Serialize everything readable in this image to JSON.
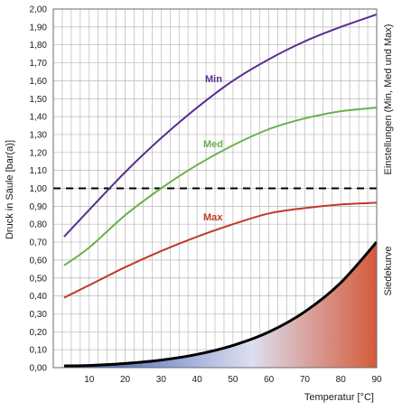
{
  "chart_data": {
    "type": "line",
    "title": "",
    "xlabel": "Temperatur [°C]",
    "ylabel": "Druck in Säule [bar(a)]",
    "right_label_top": "Einstellungen (Min, Med und Max)",
    "right_label_bottom": "Siedekurve",
    "xlim": [
      0,
      90
    ],
    "ylim": [
      0,
      2
    ],
    "x_ticks": [
      "10",
      "20",
      "30",
      "40",
      "50",
      "60",
      "70",
      "80",
      "90"
    ],
    "y_ticks": [
      "0,00",
      "0,10",
      "0,20",
      "0,30",
      "0,40",
      "0,50",
      "0,60",
      "0,70",
      "0,80",
      "0,90",
      "1,00",
      "1,10",
      "1,20",
      "1,30",
      "1,40",
      "1,50",
      "1,60",
      "1,70",
      "1,80",
      "1,90",
      "2,00"
    ],
    "grid": true,
    "reference_line": {
      "y": 1.0,
      "style": "dashed"
    },
    "series": [
      {
        "name": "Min",
        "color": "#5b2d91",
        "x": [
          3,
          10,
          20,
          30,
          40,
          50,
          60,
          70,
          80,
          90
        ],
        "y": [
          0.73,
          0.88,
          1.09,
          1.28,
          1.45,
          1.6,
          1.72,
          1.82,
          1.9,
          1.97
        ]
      },
      {
        "name": "Med",
        "color": "#6ab04c",
        "x": [
          3,
          10,
          20,
          30,
          40,
          50,
          60,
          70,
          80,
          90
        ],
        "y": [
          0.57,
          0.67,
          0.85,
          1.0,
          1.13,
          1.24,
          1.33,
          1.39,
          1.43,
          1.45
        ]
      },
      {
        "name": "Max",
        "color": "#c0392b",
        "x": [
          3,
          10,
          20,
          30,
          40,
          50,
          60,
          70,
          80,
          90
        ],
        "y": [
          0.39,
          0.46,
          0.56,
          0.65,
          0.73,
          0.8,
          0.86,
          0.89,
          0.91,
          0.92
        ]
      },
      {
        "name": "Siedekurve",
        "color": "#000000",
        "x": [
          3,
          10,
          20,
          30,
          40,
          50,
          60,
          70,
          80,
          90
        ],
        "y": [
          0.01,
          0.012,
          0.023,
          0.042,
          0.074,
          0.124,
          0.199,
          0.312,
          0.474,
          0.701
        ]
      }
    ],
    "fill_gradient": [
      "#2c4fa8",
      "#dcdff0",
      "#d45a3a"
    ]
  }
}
